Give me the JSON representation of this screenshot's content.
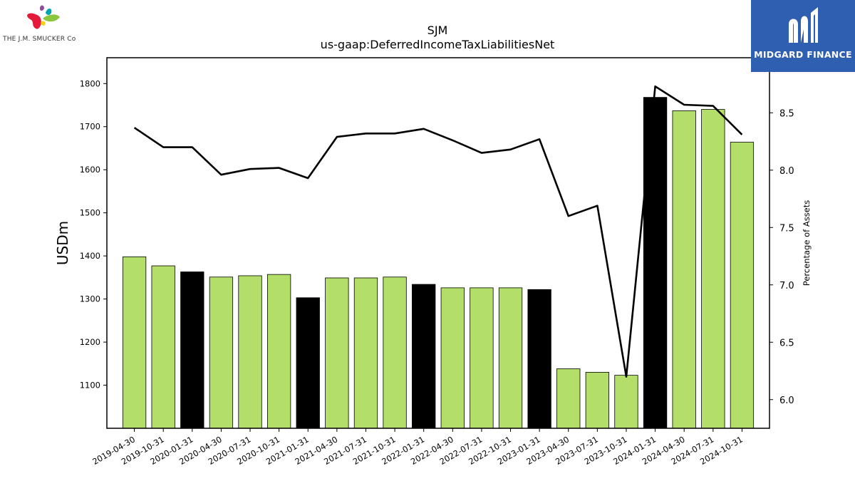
{
  "header": {
    "ticker": "SJM",
    "metric": "us-gaap:DeferredIncomeTaxLiabilitiesNet"
  },
  "logos": {
    "left_text": "THE J.M. SMUCKER Co",
    "right_text": "MIDGARD FINANCE"
  },
  "colors": {
    "bar_green": "#b3de69",
    "bar_black": "#000000",
    "line": "#000000",
    "brand_blue": "#2f5fb0"
  },
  "chart_data": {
    "type": "bar",
    "categories": [
      "2019-04-30",
      "2019-10-31",
      "2020-01-31",
      "2020-04-30",
      "2020-07-31",
      "2020-10-31",
      "2021-01-31",
      "2021-04-30",
      "2021-07-31",
      "2021-10-31",
      "2022-01-31",
      "2022-04-30",
      "2022-07-31",
      "2022-10-31",
      "2023-01-31",
      "2023-04-30",
      "2023-07-31",
      "2023-10-31",
      "2024-01-31",
      "2024-04-30",
      "2024-07-31",
      "2024-10-31"
    ],
    "series": [
      {
        "axis": "left",
        "type": "bar",
        "values": [
          1398,
          1377,
          1363,
          1351,
          1354,
          1357,
          1303,
          1349,
          1349,
          1351,
          1334,
          1326,
          1326,
          1326,
          1322,
          1138,
          1130,
          1123,
          1768,
          1737,
          1740,
          1664
        ],
        "bar_colors": [
          "green",
          "green",
          "black",
          "green",
          "green",
          "green",
          "black",
          "green",
          "green",
          "green",
          "black",
          "green",
          "green",
          "green",
          "black",
          "green",
          "green",
          "green",
          "black",
          "green",
          "green",
          "green"
        ]
      },
      {
        "axis": "right",
        "type": "line",
        "values": [
          8.37,
          8.2,
          8.2,
          7.96,
          8.01,
          8.02,
          7.93,
          8.29,
          8.32,
          8.32,
          8.36,
          8.26,
          8.15,
          8.18,
          8.27,
          7.6,
          7.69,
          6.2,
          8.73,
          8.57,
          8.56,
          8.31
        ]
      }
    ],
    "title": "SJM",
    "subtitle": "us-gaap:DeferredIncomeTaxLiabilitiesNet",
    "ylabel": "USDm",
    "ylabel_right": "Percentage of Assets",
    "ylim": [
      1000,
      1860
    ],
    "ylim_right": [
      5.75,
      8.98
    ],
    "yticks": [
      1100,
      1200,
      1300,
      1400,
      1500,
      1600,
      1700,
      1800
    ],
    "yticks_right": [
      "6.0",
      "6.5",
      "7.0",
      "7.5",
      "8.0",
      "8.5"
    ],
    "grid": false,
    "legend": "none"
  }
}
